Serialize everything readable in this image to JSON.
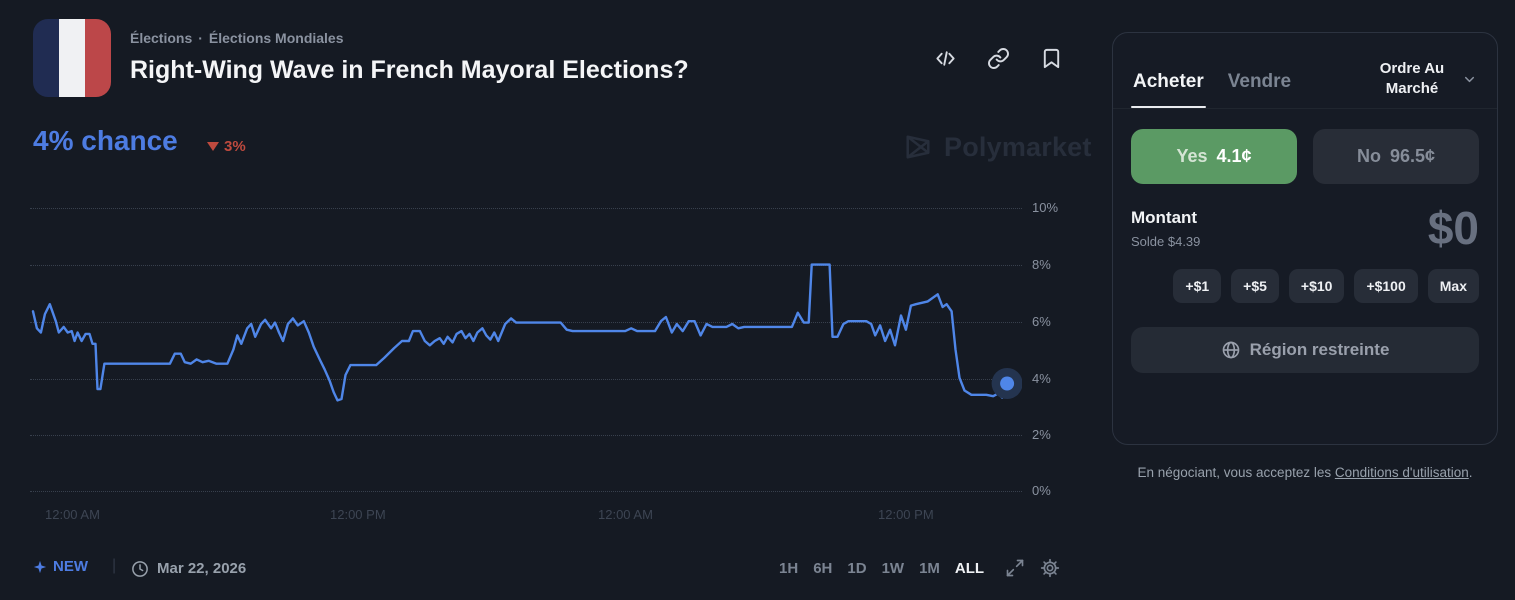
{
  "header": {
    "breadcrumb": {
      "items": [
        "Élections",
        "Élections Mondiales"
      ],
      "separator": "·"
    },
    "title": "Right-Wing Wave in French Mayoral Elections?"
  },
  "price": {
    "chance": "4% chance",
    "change": "3%",
    "direction": "down"
  },
  "watermark": "Polymarket",
  "colors": {
    "accent_blue": "#4d7ce2",
    "down_red": "#bf4a3e",
    "yes_green": "#5b9a64",
    "line_blue": "#4f86e8",
    "background": "#151a23"
  },
  "chart_data": {
    "type": "line",
    "title": "Right-Wing Wave in French Mayoral Elections?",
    "ylabel": "chance",
    "ylim": [
      0,
      10.5
    ],
    "grid": "dotted-horizontal",
    "yticks": [
      "10%",
      "8%",
      "6%",
      "4%",
      "2%",
      "0%"
    ],
    "xticks": [
      "12:00 AM",
      "12:00 PM",
      "12:00 AM",
      "12:00 PM"
    ],
    "current_value_pct": 3.8,
    "points": [
      [
        0.003,
        6.35
      ],
      [
        0.007,
        5.75
      ],
      [
        0.011,
        5.6
      ],
      [
        0.015,
        6.25
      ],
      [
        0.02,
        6.6
      ],
      [
        0.026,
        6.0
      ],
      [
        0.029,
        5.6
      ],
      [
        0.034,
        5.8
      ],
      [
        0.038,
        5.6
      ],
      [
        0.042,
        5.65
      ],
      [
        0.045,
        5.3
      ],
      [
        0.048,
        5.6
      ],
      [
        0.052,
        5.3
      ],
      [
        0.056,
        5.55
      ],
      [
        0.06,
        5.55
      ],
      [
        0.063,
        5.2
      ],
      [
        0.066,
        5.2
      ],
      [
        0.068,
        3.6
      ],
      [
        0.071,
        3.6
      ],
      [
        0.075,
        4.5
      ],
      [
        0.141,
        4.5
      ],
      [
        0.146,
        4.85
      ],
      [
        0.152,
        4.85
      ],
      [
        0.156,
        4.55
      ],
      [
        0.162,
        4.5
      ],
      [
        0.168,
        4.65
      ],
      [
        0.174,
        4.55
      ],
      [
        0.18,
        4.6
      ],
      [
        0.188,
        4.5
      ],
      [
        0.199,
        4.5
      ],
      [
        0.205,
        5.0
      ],
      [
        0.209,
        5.5
      ],
      [
        0.213,
        5.2
      ],
      [
        0.219,
        5.75
      ],
      [
        0.223,
        5.9
      ],
      [
        0.227,
        5.45
      ],
      [
        0.233,
        5.9
      ],
      [
        0.237,
        6.05
      ],
      [
        0.243,
        5.75
      ],
      [
        0.247,
        5.95
      ],
      [
        0.251,
        5.6
      ],
      [
        0.255,
        5.3
      ],
      [
        0.26,
        5.9
      ],
      [
        0.265,
        6.1
      ],
      [
        0.27,
        5.85
      ],
      [
        0.276,
        6.0
      ],
      [
        0.281,
        5.6
      ],
      [
        0.286,
        5.1
      ],
      [
        0.292,
        4.65
      ],
      [
        0.297,
        4.3
      ],
      [
        0.302,
        3.9
      ],
      [
        0.306,
        3.5
      ],
      [
        0.31,
        3.2
      ],
      [
        0.314,
        3.25
      ],
      [
        0.318,
        4.1
      ],
      [
        0.323,
        4.45
      ],
      [
        0.349,
        4.45
      ],
      [
        0.357,
        4.7
      ],
      [
        0.367,
        5.05
      ],
      [
        0.375,
        5.3
      ],
      [
        0.382,
        5.3
      ],
      [
        0.386,
        5.65
      ],
      [
        0.393,
        5.65
      ],
      [
        0.398,
        5.3
      ],
      [
        0.403,
        5.15
      ],
      [
        0.408,
        5.3
      ],
      [
        0.413,
        5.4
      ],
      [
        0.417,
        5.2
      ],
      [
        0.421,
        5.45
      ],
      [
        0.426,
        5.25
      ],
      [
        0.43,
        5.55
      ],
      [
        0.435,
        5.65
      ],
      [
        0.439,
        5.4
      ],
      [
        0.443,
        5.55
      ],
      [
        0.447,
        5.3
      ],
      [
        0.451,
        5.6
      ],
      [
        0.456,
        5.75
      ],
      [
        0.46,
        5.5
      ],
      [
        0.464,
        5.35
      ],
      [
        0.468,
        5.6
      ],
      [
        0.472,
        5.3
      ],
      [
        0.479,
        5.9
      ],
      [
        0.485,
        6.1
      ],
      [
        0.49,
        5.95
      ],
      [
        0.535,
        5.95
      ],
      [
        0.541,
        5.7
      ],
      [
        0.547,
        5.65
      ],
      [
        0.6,
        5.65
      ],
      [
        0.606,
        5.75
      ],
      [
        0.612,
        5.65
      ],
      [
        0.63,
        5.65
      ],
      [
        0.636,
        6.0
      ],
      [
        0.641,
        6.15
      ],
      [
        0.647,
        5.6
      ],
      [
        0.652,
        5.9
      ],
      [
        0.658,
        5.65
      ],
      [
        0.664,
        6.0
      ],
      [
        0.67,
        6.0
      ],
      [
        0.676,
        5.5
      ],
      [
        0.682,
        5.9
      ],
      [
        0.688,
        5.8
      ],
      [
        0.702,
        5.8
      ],
      [
        0.708,
        5.9
      ],
      [
        0.714,
        5.75
      ],
      [
        0.72,
        5.8
      ],
      [
        0.768,
        5.8
      ],
      [
        0.774,
        6.3
      ],
      [
        0.78,
        5.95
      ],
      [
        0.785,
        5.95
      ],
      [
        0.788,
        8.0
      ],
      [
        0.806,
        8.0
      ],
      [
        0.809,
        5.45
      ],
      [
        0.814,
        5.45
      ],
      [
        0.82,
        5.9
      ],
      [
        0.825,
        6.0
      ],
      [
        0.843,
        6.0
      ],
      [
        0.848,
        5.9
      ],
      [
        0.852,
        5.5
      ],
      [
        0.857,
        5.85
      ],
      [
        0.862,
        5.3
      ],
      [
        0.867,
        5.7
      ],
      [
        0.872,
        5.15
      ],
      [
        0.878,
        6.2
      ],
      [
        0.883,
        5.7
      ],
      [
        0.888,
        6.55
      ],
      [
        0.893,
        6.6
      ],
      [
        0.905,
        6.7
      ],
      [
        0.915,
        6.95
      ],
      [
        0.92,
        6.5
      ],
      [
        0.924,
        6.6
      ],
      [
        0.929,
        6.35
      ],
      [
        0.933,
        5.0
      ],
      [
        0.937,
        4.0
      ],
      [
        0.942,
        3.55
      ],
      [
        0.949,
        3.4
      ],
      [
        0.964,
        3.4
      ],
      [
        0.971,
        3.35
      ],
      [
        0.976,
        3.45
      ],
      [
        0.98,
        3.3
      ],
      [
        0.985,
        3.8
      ]
    ]
  },
  "footer_bar": {
    "new_label": "NEW",
    "date": "Mar 22, 2026",
    "divider": "|",
    "ranges": [
      "1H",
      "6H",
      "1D",
      "1W",
      "1M",
      "ALL"
    ],
    "active_range": "ALL"
  },
  "panel": {
    "tabs": [
      "Acheter",
      "Vendre"
    ],
    "active_tab": "Acheter",
    "order_type": "Ordre Au Marché",
    "yes": {
      "label": "Yes",
      "price": "4.1¢"
    },
    "no": {
      "label": "No",
      "price": "96.5¢"
    },
    "amount_label": "Montant",
    "balance": "Solde $4.39",
    "amount_value": "$0",
    "chips": [
      "+$1",
      "+$5",
      "+$10",
      "+$100",
      "Max"
    ],
    "restricted_label": "Région restreinte",
    "terms": {
      "prefix": "En négociant, vous acceptez les ",
      "link": "Conditions d'utilisation",
      "suffix": "."
    }
  }
}
